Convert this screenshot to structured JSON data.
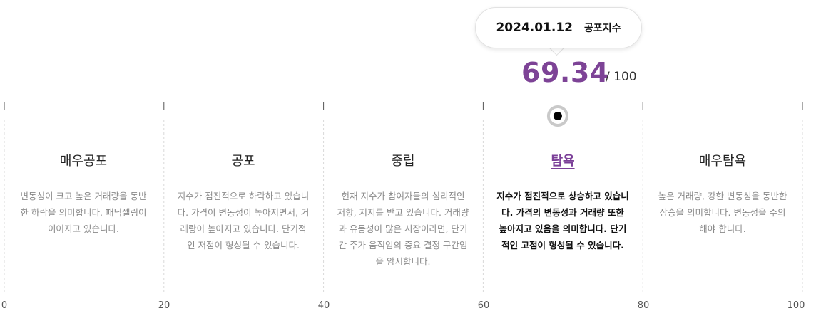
{
  "tooltip": {
    "date": "2024.01.12",
    "label": "공포지수"
  },
  "score": {
    "value": "69.34",
    "max": "/ 100",
    "fraction": 0.6934
  },
  "colors": {
    "gradient_start": "#e85057",
    "gradient_end": "#7b33c2",
    "accent": "#7d4396",
    "marker_ring": "#c9c9c9",
    "marker_dot": "#000000"
  },
  "zones": [
    {
      "title": "매우공포",
      "desc": "변동성이 크고 높은 거래량을 동반한 하락을 의미합니다. 패닉셀링이 이어지고 있습니다.",
      "active": false
    },
    {
      "title": "공포",
      "desc": "지수가 점진적으로 하락하고 있습니다. 가격이 변동성이 높아지면서, 거래량이 높아지고 있습니다. 단기적인 저점이 형성될 수 있습니다.",
      "active": false
    },
    {
      "title": "중립",
      "desc": "현재 지수가 참여자들의 심리적인 저항, 지지를 받고 있습니다. 거래량과 유동성이 많은 시장이라면, 단기간 주가 움직임의 중요 결정 구간임을 암시합니다.",
      "active": false
    },
    {
      "title": "탐욕",
      "desc": "지수가 점진적으로 상승하고 있습니다. 가격의 변동성과 거래량 또한 높아지고 있음을 의미합니다. 단기적인 고점이 형성될 수 있습니다.",
      "active": true
    },
    {
      "title": "매우탐욕",
      "desc": "높은 거래량, 강한 변동성을 동반한 상승을 의미합니다. 변동성을 주의해야 합니다.",
      "active": false
    }
  ],
  "scale": {
    "ticks": [
      "0",
      "20",
      "40",
      "60",
      "80",
      "100"
    ]
  }
}
